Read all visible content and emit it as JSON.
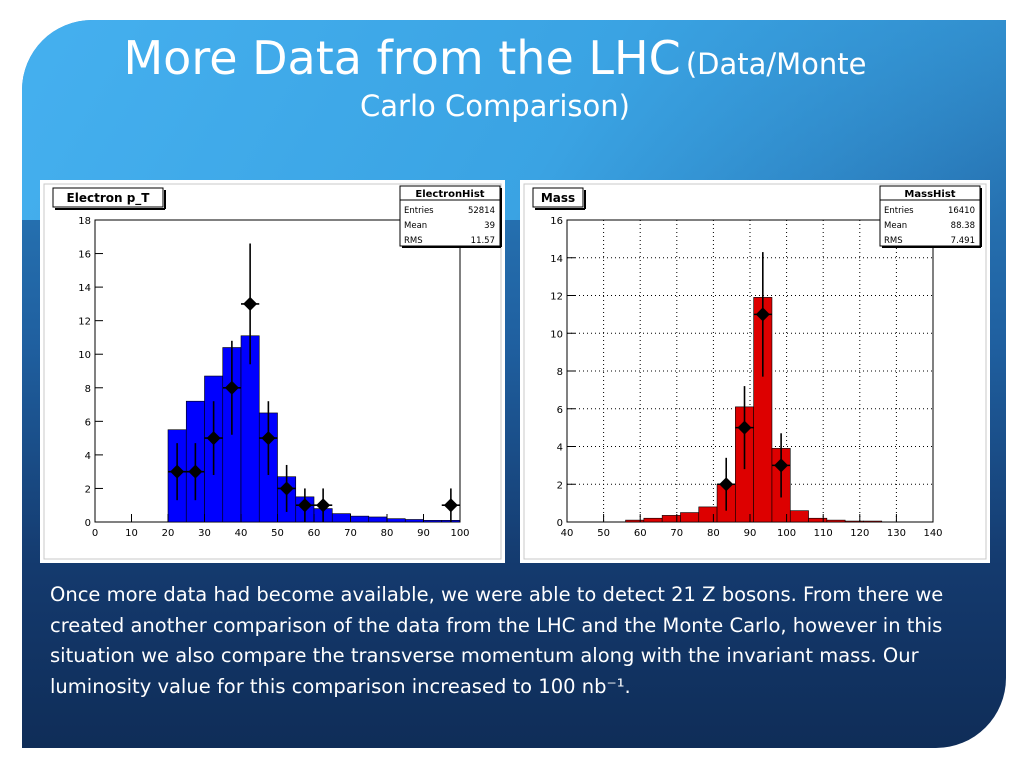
{
  "title": {
    "main": "More Data from the LHC",
    "sub1": "(Data/Monte",
    "sub2": "Carlo Comparison)"
  },
  "description": "Once more data had become available, we were able to detect 21 Z bosons. From there we created another comparison of the data from the LHC and the Monte Carlo, however in this situation we also compare the transverse momentum along with the invariant mass. Our luminosity value for this comparison increased to 100 nb⁻¹.",
  "colors": {
    "slide_top": "#3aa3e3",
    "slide_bottom": "#0f2d58",
    "left_fill": "#0000ff",
    "right_fill": "#dd0000",
    "marker": "#000000"
  },
  "chart_data": [
    {
      "type": "bar",
      "title": "Electron p_T",
      "stats_box": {
        "name": "ElectronHist",
        "rows": [
          [
            "Entries",
            "52814"
          ],
          [
            "Mean",
            "39"
          ],
          [
            "RMS",
            "11.57"
          ]
        ]
      },
      "xlim": [
        0,
        100
      ],
      "ylim": [
        0,
        18
      ],
      "xticks": [
        0,
        10,
        20,
        30,
        40,
        50,
        60,
        70,
        80,
        90,
        100
      ],
      "yticks": [
        0,
        2,
        4,
        6,
        8,
        10,
        12,
        14,
        16,
        18
      ],
      "grid": false,
      "fill_color": "#0000ff",
      "bin_edges": [
        20,
        25,
        30,
        35,
        40,
        45,
        50,
        55,
        60,
        65,
        70,
        75,
        80,
        85,
        90,
        95,
        100
      ],
      "mc_values": [
        5.5,
        7.2,
        8.7,
        10.4,
        11.1,
        6.5,
        2.7,
        1.5,
        0.8,
        0.5,
        0.35,
        0.3,
        0.2,
        0.15,
        0.1,
        0.1
      ],
      "data_points": [
        {
          "x": 22.5,
          "y": 3,
          "ylo": 1.3,
          "yhi": 4.7
        },
        {
          "x": 27.5,
          "y": 3,
          "ylo": 1.3,
          "yhi": 4.7
        },
        {
          "x": 32.5,
          "y": 5,
          "ylo": 2.8,
          "yhi": 7.2
        },
        {
          "x": 37.5,
          "y": 8,
          "ylo": 5.2,
          "yhi": 10.8
        },
        {
          "x": 42.5,
          "y": 13,
          "ylo": 9.4,
          "yhi": 16.6
        },
        {
          "x": 47.5,
          "y": 5,
          "ylo": 2.8,
          "yhi": 7.2
        },
        {
          "x": 52.5,
          "y": 2,
          "ylo": 0.6,
          "yhi": 3.4
        },
        {
          "x": 57.5,
          "y": 1,
          "ylo": 0,
          "yhi": 2
        },
        {
          "x": 62.5,
          "y": 1,
          "ylo": 0,
          "yhi": 2
        },
        {
          "x": 97.5,
          "y": 1,
          "ylo": 0,
          "yhi": 2
        }
      ]
    },
    {
      "type": "bar",
      "title": "Mass",
      "stats_box": {
        "name": "MassHist",
        "rows": [
          [
            "Entries",
            "16410"
          ],
          [
            "Mean",
            "88.38"
          ],
          [
            "RMS",
            "7.491"
          ]
        ]
      },
      "xlim": [
        40,
        140
      ],
      "ylim": [
        0,
        16
      ],
      "xticks": [
        40,
        50,
        60,
        70,
        80,
        90,
        100,
        110,
        120,
        130,
        140
      ],
      "yticks": [
        0,
        2,
        4,
        6,
        8,
        10,
        12,
        14,
        16
      ],
      "grid": true,
      "fill_color": "#dd0000",
      "bin_edges": [
        56,
        61,
        66,
        71,
        76,
        81,
        86,
        91,
        96,
        101,
        106,
        111,
        116,
        121,
        126
      ],
      "mc_values": [
        0.1,
        0.2,
        0.35,
        0.5,
        0.8,
        2.0,
        6.1,
        11.9,
        3.9,
        0.6,
        0.2,
        0.1,
        0.05,
        0.05
      ],
      "data_points": [
        {
          "x": 83.5,
          "y": 2,
          "ylo": 0.6,
          "yhi": 3.4
        },
        {
          "x": 88.5,
          "y": 5,
          "ylo": 2.8,
          "yhi": 7.2
        },
        {
          "x": 93.5,
          "y": 11,
          "ylo": 7.7,
          "yhi": 14.3
        },
        {
          "x": 98.5,
          "y": 3,
          "ylo": 1.3,
          "yhi": 4.7
        }
      ]
    }
  ]
}
